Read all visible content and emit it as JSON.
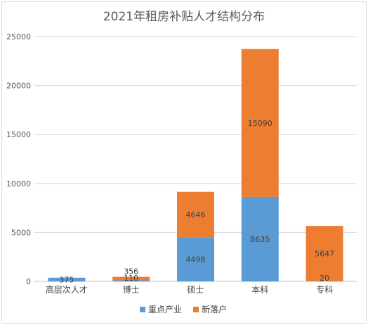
{
  "chart_data": {
    "type": "bar",
    "stacked": true,
    "title": "2021年租房补贴人才结构分布",
    "categories": [
      "高层次人才",
      "博士",
      "硕士",
      "本科",
      "专科"
    ],
    "series": [
      {
        "name": "重点产业",
        "color": "#5B9BD5",
        "values": [
          375,
          110,
          4498,
          8635,
          20
        ]
      },
      {
        "name": "新落户",
        "color": "#ED7D31",
        "values": [
          null,
          356,
          4646,
          15090,
          5647
        ]
      }
    ],
    "ylim": [
      0,
      25000
    ],
    "yticks": [
      0,
      5000,
      10000,
      15000,
      20000,
      25000
    ],
    "grid": true,
    "legend": "bottom"
  }
}
